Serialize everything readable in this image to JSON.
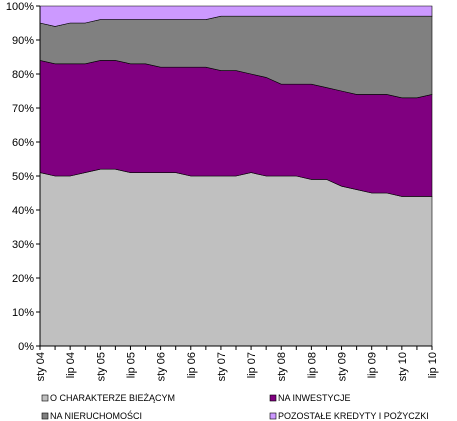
{
  "chart_data": {
    "type": "stacked_area",
    "categories": [
      "sty 04",
      null,
      "lip 04",
      null,
      "sty 05",
      null,
      "lip 05",
      null,
      "sty 06",
      null,
      "lip 06",
      null,
      "sty 07",
      null,
      "lip 07",
      null,
      "sty 08",
      null,
      "lip 08",
      null,
      "sty 09",
      null,
      "lip 09",
      null,
      "sty 10",
      null,
      "lip 10"
    ],
    "series": [
      {
        "name": "O CHARAKTERZE BIEŻĄCYM",
        "color": "#c0c0c0",
        "values": [
          51,
          50,
          50,
          51,
          52,
          52,
          51,
          51,
          51,
          51,
          50,
          50,
          50,
          50,
          51,
          50,
          50,
          50,
          49,
          49,
          47,
          46,
          45,
          45,
          44,
          44,
          44
        ]
      },
      {
        "name": "NA INWESTYCJE",
        "color": "#800080",
        "values": [
          33,
          33,
          33,
          32,
          32,
          32,
          32,
          32,
          31,
          31,
          32,
          32,
          31,
          31,
          29,
          29,
          27,
          27,
          28,
          27,
          28,
          28,
          29,
          29,
          29,
          29,
          30
        ]
      },
      {
        "name": "NA NIERUCHOMOŚCI",
        "color": "#808080",
        "values": [
          11,
          11,
          12,
          12,
          12,
          12,
          13,
          13,
          14,
          14,
          14,
          14,
          16,
          16,
          17,
          18,
          20,
          20,
          20,
          21,
          22,
          23,
          23,
          23,
          24,
          24,
          23
        ]
      },
      {
        "name": "POZOSTAŁE KREDYTY I POŻYCZKI",
        "color": "#cc99ff",
        "values": [
          5,
          6,
          5,
          5,
          4,
          4,
          4,
          4,
          4,
          4,
          4,
          4,
          3,
          3,
          3,
          3,
          3,
          3,
          3,
          3,
          3,
          3,
          3,
          3,
          3,
          3,
          3
        ]
      }
    ],
    "ylim": [
      0,
      100
    ],
    "yticks": [
      {
        "value": 0,
        "label": "0%"
      },
      {
        "value": 10,
        "label": "10%"
      },
      {
        "value": 20,
        "label": "20%"
      },
      {
        "value": 30,
        "label": "30%"
      },
      {
        "value": 40,
        "label": "40%"
      },
      {
        "value": 50,
        "label": "50%"
      },
      {
        "value": 60,
        "label": "60%"
      },
      {
        "value": 70,
        "label": "70%"
      },
      {
        "value": 80,
        "label": "80%"
      },
      {
        "value": 90,
        "label": "90%"
      },
      {
        "value": 100,
        "label": "100%"
      }
    ]
  }
}
